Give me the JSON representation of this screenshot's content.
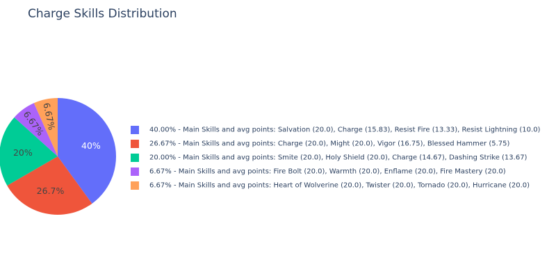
{
  "chart_data": {
    "type": "pie",
    "title": "Charge Skills Distribution",
    "slices": [
      {
        "label": "40.00% - Main Skills and avg points: Salvation (20.0), Charge (15.83), Resist Fire (13.33), Resist Lightning (10.0)",
        "value": 40.0,
        "text": "40%",
        "color": "#636efa",
        "text_color": "#ffffff"
      },
      {
        "label": "26.67% - Main Skills and avg points: Charge (20.0), Might (20.0), Vigor (16.75), Blessed Hammer (5.75)",
        "value": 26.67,
        "text": "26.7%",
        "color": "#EF553B",
        "text_color": "#444444"
      },
      {
        "label": "20.00% - Main Skills and avg points: Smite (20.0), Holy Shield (20.0), Charge (14.67), Dashing Strike (13.67)",
        "value": 20.0,
        "text": "20%",
        "color": "#00cc96",
        "text_color": "#444444"
      },
      {
        "label": "6.67% - Main Skills and avg points: Fire Bolt (20.0), Warmth (20.0), Enflame (20.0), Fire Mastery (20.0)",
        "value": 6.67,
        "text": "6.67%",
        "color": "#ab63fa",
        "text_color": "#444444"
      },
      {
        "label": "6.67% - Main Skills and avg points: Heart of Wolverine (20.0), Twister (20.0), Tornado (20.0), Hurricane (20.0)",
        "value": 6.67,
        "text": "6.67%",
        "color": "#FFA15A",
        "text_color": "#444444"
      }
    ],
    "legend_position": "right",
    "direction": "clockwise",
    "start_angle": "top"
  }
}
